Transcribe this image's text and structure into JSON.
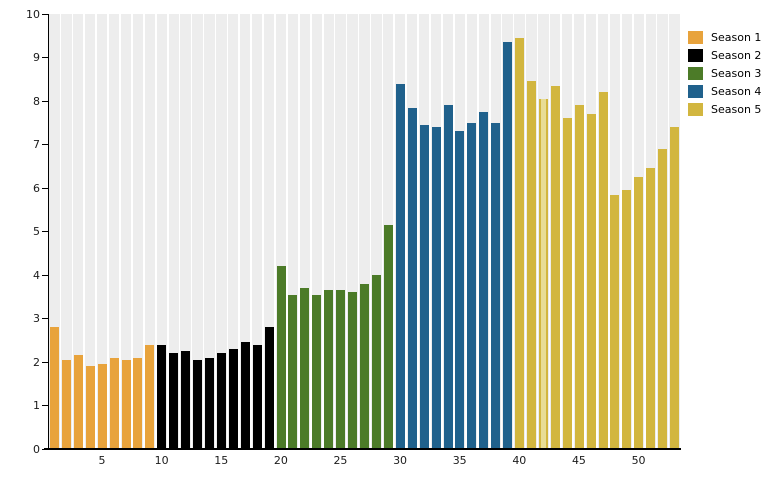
{
  "chart_data": {
    "type": "bar",
    "title": "",
    "xlabel": "",
    "ylabel": "",
    "ylim": [
      0,
      10
    ],
    "total_bars": 53,
    "y_ticks": [
      0,
      1,
      2,
      3,
      4,
      5,
      6,
      7,
      8,
      9,
      10
    ],
    "x_ticks": [
      5,
      10,
      15,
      20,
      25,
      30,
      35,
      40,
      45,
      50
    ],
    "grid": "off",
    "background_stripes": true,
    "legend_position": "top-right",
    "series": [
      {
        "name": "Season 1",
        "color": "#E8A33C",
        "start_episode": 1,
        "values": [
          2.8,
          2.05,
          2.15,
          1.9,
          1.95,
          2.1,
          2.05,
          2.1,
          2.4
        ]
      },
      {
        "name": "Season 2",
        "color": "#000000",
        "start_episode": 10,
        "values": [
          2.4,
          2.2,
          2.25,
          2.05,
          2.1,
          2.2,
          2.3,
          2.45,
          2.4,
          2.8
        ]
      },
      {
        "name": "Season 3",
        "color": "#4C7B28",
        "start_episode": 20,
        "values": [
          4.2,
          3.55,
          3.7,
          3.55,
          3.65,
          3.65,
          3.6,
          3.8,
          4.0,
          5.15
        ]
      },
      {
        "name": "Season 4",
        "color": "#20618C",
        "start_episode": 30,
        "values": [
          8.4,
          7.85,
          7.45,
          7.4,
          7.9,
          7.3,
          7.5,
          7.75,
          7.5,
          9.35
        ]
      },
      {
        "name": "Season 5",
        "color": "#D2B63F",
        "start_episode": 40,
        "values": [
          9.45,
          8.45,
          8.05,
          8.35,
          7.6,
          7.9,
          7.7,
          8.2,
          5.85,
          5.95,
          6.25,
          6.45,
          6.9,
          7.4
        ]
      }
    ],
    "highlighted_bar": {
      "episode": 42,
      "fill": "#E8DD96",
      "edge": "#D2B63F"
    }
  },
  "colors": {
    "stripe": "#EDEDED",
    "axis": "#000000",
    "background": "#FFFFFF"
  }
}
